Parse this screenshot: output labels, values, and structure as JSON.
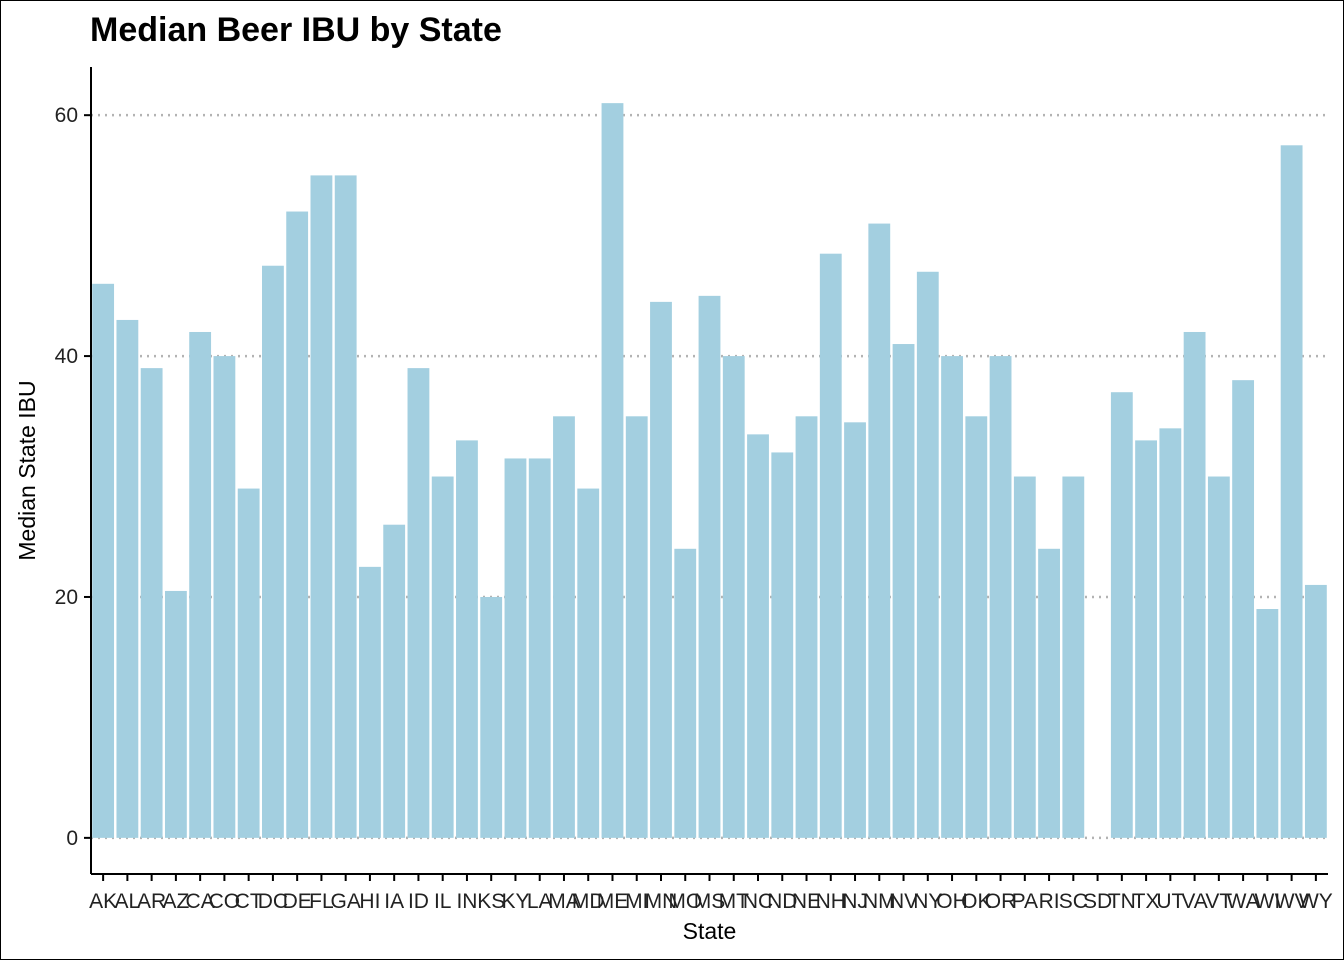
{
  "chart_data": {
    "type": "bar",
    "title": "Median Beer IBU by State",
    "xlabel": "State",
    "ylabel": "Median State IBU",
    "ylim": [
      -3,
      64
    ],
    "yticks": [
      0,
      20,
      40,
      60
    ],
    "grid": "horizontal dotted",
    "bar_color": "#a3cfe0",
    "categories": [
      "AK",
      "AL",
      "AR",
      "AZ",
      "CA",
      "CO",
      "CT",
      "DC",
      "DE",
      "FL",
      "GA",
      "HI",
      "IA",
      "ID",
      "IL",
      "IN",
      "KS",
      "KY",
      "LA",
      "MA",
      "MD",
      "ME",
      "MI",
      "MN",
      "MO",
      "MS",
      "MT",
      "NC",
      "ND",
      "NE",
      "NH",
      "NJ",
      "NM",
      "NV",
      "NY",
      "OH",
      "OK",
      "OR",
      "PA",
      "RI",
      "SC",
      "SD",
      "TN",
      "TX",
      "UT",
      "VA",
      "VT",
      "WA",
      "WI",
      "WV",
      "WY"
    ],
    "values": [
      46,
      43,
      39,
      20.5,
      42,
      40,
      29,
      47.5,
      52,
      55,
      55,
      22.5,
      26,
      39,
      30,
      33,
      20,
      31.5,
      31.5,
      35,
      29,
      61,
      35,
      44.5,
      24,
      45,
      40,
      33.5,
      32,
      35,
      48.5,
      34.5,
      51,
      41,
      47,
      40,
      35,
      40,
      30,
      24,
      30,
      null,
      37,
      33,
      34,
      42,
      30,
      38,
      19,
      57.5,
      21
    ]
  }
}
